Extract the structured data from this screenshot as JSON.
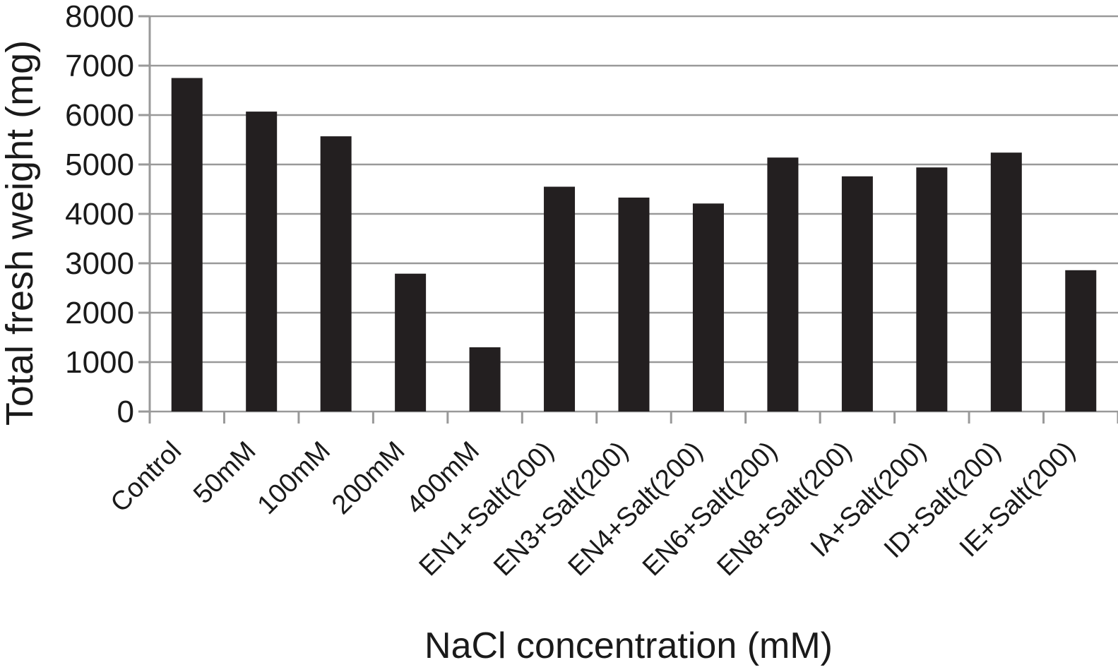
{
  "chart_data": {
    "type": "bar",
    "title": "",
    "categories": [
      "Control",
      "50mM",
      "100mM",
      "200mM",
      "400mM",
      "EN1+Salt(200)",
      "EN3+Salt(200)",
      "EN4+Salt(200)",
      "EN6+Salt(200)",
      "EN8+Salt(200)",
      "IA+Salt(200)",
      "ID+Salt(200)",
      "IE+Salt(200)"
    ],
    "values": [
      6750,
      6070,
      5570,
      2790,
      1300,
      4550,
      4330,
      4210,
      5140,
      4760,
      4940,
      5240,
      2860
    ],
    "xlabel": "NaCl concentration (mM)",
    "ylabel": "Total fresh weight (mg)",
    "ylim": [
      0,
      8000
    ],
    "ytick_step": 1000,
    "y_ticks": [
      0,
      1000,
      2000,
      3000,
      4000,
      5000,
      6000,
      7000,
      8000
    ],
    "grid": true,
    "legend": "none",
    "bar_color": "#231f20",
    "grid_color": "#999999",
    "text_color": "#1a1a1a",
    "background": "#ffffff"
  }
}
